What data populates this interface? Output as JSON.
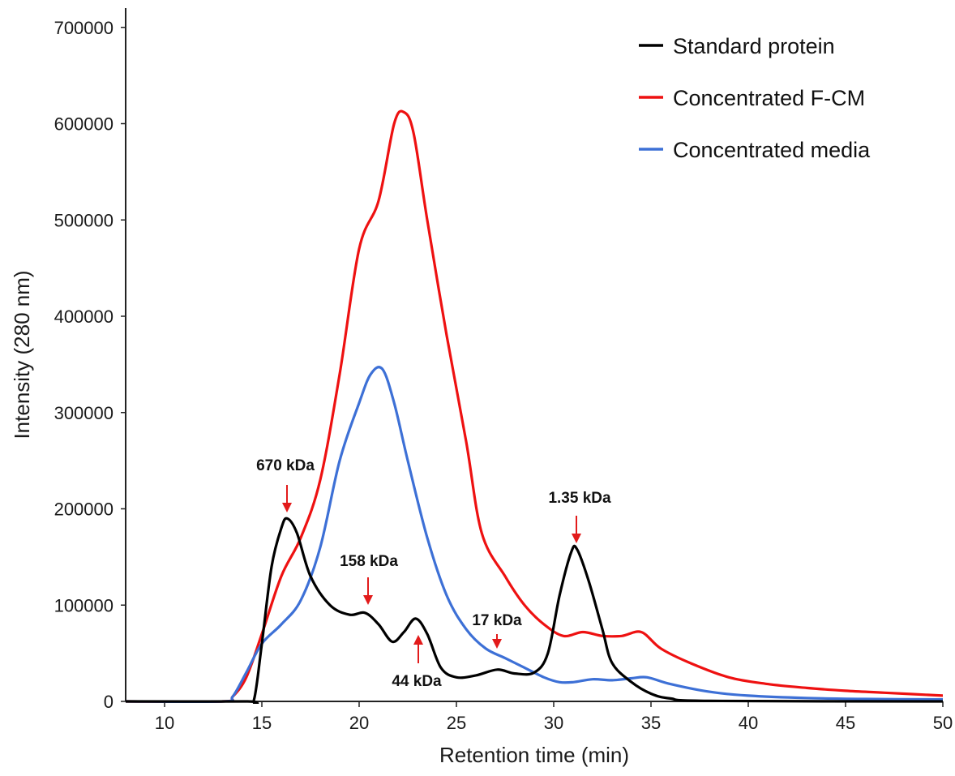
{
  "chart_data": {
    "type": "line",
    "title": "",
    "xlabel": "Retention time (min)",
    "ylabel": "Intensity (280 nm)",
    "xlim": [
      8,
      50
    ],
    "ylim": [
      0,
      720000
    ],
    "xticks": [
      10,
      15,
      20,
      25,
      30,
      35,
      40,
      45,
      50
    ],
    "yticks": [
      0,
      100000,
      200000,
      300000,
      400000,
      500000,
      600000,
      700000
    ],
    "grid": false,
    "legend_position": "top-right",
    "series": [
      {
        "name": "Standard protein",
        "color": "#000000",
        "points": [
          [
            8,
            0
          ],
          [
            14.2,
            0
          ],
          [
            14.6,
            2000
          ],
          [
            15.0,
            60000
          ],
          [
            15.5,
            140000
          ],
          [
            16.0,
            180000
          ],
          [
            16.3,
            190000
          ],
          [
            16.8,
            175000
          ],
          [
            17.5,
            130000
          ],
          [
            18.5,
            100000
          ],
          [
            19.5,
            90000
          ],
          [
            20.3,
            92000
          ],
          [
            21.0,
            80000
          ],
          [
            21.7,
            62000
          ],
          [
            22.3,
            72000
          ],
          [
            22.9,
            86000
          ],
          [
            23.5,
            70000
          ],
          [
            24.2,
            35000
          ],
          [
            25.0,
            25000
          ],
          [
            26.0,
            27000
          ],
          [
            27.1,
            33000
          ],
          [
            28.0,
            29000
          ],
          [
            29.0,
            30000
          ],
          [
            29.7,
            50000
          ],
          [
            30.3,
            110000
          ],
          [
            30.9,
            155000
          ],
          [
            31.2,
            158000
          ],
          [
            31.8,
            125000
          ],
          [
            32.5,
            75000
          ],
          [
            33.0,
            40000
          ],
          [
            34.0,
            20000
          ],
          [
            35.0,
            8000
          ],
          [
            36.0,
            3000
          ],
          [
            38.0,
            500
          ],
          [
            50,
            0
          ]
        ]
      },
      {
        "name": "Concentrated F-CM",
        "color": "#ee1111",
        "points": [
          [
            8,
            0
          ],
          [
            13.0,
            0
          ],
          [
            13.5,
            5000
          ],
          [
            14.2,
            25000
          ],
          [
            15.0,
            70000
          ],
          [
            16.0,
            130000
          ],
          [
            17.0,
            170000
          ],
          [
            18.0,
            230000
          ],
          [
            19.0,
            340000
          ],
          [
            20.0,
            470000
          ],
          [
            21.0,
            520000
          ],
          [
            21.8,
            600000
          ],
          [
            22.3,
            612000
          ],
          [
            22.8,
            590000
          ],
          [
            23.5,
            500000
          ],
          [
            24.5,
            380000
          ],
          [
            25.5,
            270000
          ],
          [
            26.3,
            175000
          ],
          [
            27.5,
            130000
          ],
          [
            28.5,
            100000
          ],
          [
            29.5,
            80000
          ],
          [
            30.5,
            68000
          ],
          [
            31.5,
            72000
          ],
          [
            32.5,
            68000
          ],
          [
            33.5,
            68000
          ],
          [
            34.5,
            72000
          ],
          [
            35.5,
            55000
          ],
          [
            37.0,
            40000
          ],
          [
            39.0,
            25000
          ],
          [
            41.0,
            18000
          ],
          [
            43.0,
            14000
          ],
          [
            45.0,
            11000
          ],
          [
            47.0,
            9000
          ],
          [
            50.0,
            6000
          ]
        ]
      },
      {
        "name": "Concentrated media",
        "color": "#3d70d6",
        "points": [
          [
            8,
            0
          ],
          [
            13.0,
            0
          ],
          [
            13.5,
            5000
          ],
          [
            14.2,
            30000
          ],
          [
            15.0,
            60000
          ],
          [
            16.0,
            80000
          ],
          [
            17.0,
            105000
          ],
          [
            18.0,
            160000
          ],
          [
            19.0,
            250000
          ],
          [
            20.0,
            310000
          ],
          [
            20.6,
            340000
          ],
          [
            21.2,
            345000
          ],
          [
            21.8,
            310000
          ],
          [
            22.5,
            250000
          ],
          [
            23.5,
            170000
          ],
          [
            24.5,
            110000
          ],
          [
            25.5,
            75000
          ],
          [
            26.5,
            55000
          ],
          [
            27.5,
            45000
          ],
          [
            28.5,
            35000
          ],
          [
            29.5,
            25000
          ],
          [
            30.3,
            20000
          ],
          [
            31.0,
            20000
          ],
          [
            32.0,
            23000
          ],
          [
            33.0,
            22000
          ],
          [
            34.0,
            24000
          ],
          [
            34.8,
            25000
          ],
          [
            36.0,
            18000
          ],
          [
            38.0,
            10000
          ],
          [
            40.0,
            6000
          ],
          [
            43.0,
            3500
          ],
          [
            46.0,
            2500
          ],
          [
            50.0,
            2000
          ]
        ]
      }
    ],
    "annotations": [
      {
        "text": "670 kDa",
        "x": 16.3,
        "y": 190000,
        "arrow_from": "above"
      },
      {
        "text": "158 kDa",
        "x": 20.5,
        "y": 92000,
        "arrow_from": "above"
      },
      {
        "text": "44 kDa",
        "x": 23.1,
        "y": 86000,
        "arrow_from": "below"
      },
      {
        "text": "17 kDa",
        "x": 27.1,
        "y": 33000,
        "arrow_from": "above"
      },
      {
        "text": "1.35 kDa",
        "x": 31.2,
        "y": 158000,
        "arrow_from": "above"
      }
    ],
    "annotation_color": "#e21b1b"
  }
}
